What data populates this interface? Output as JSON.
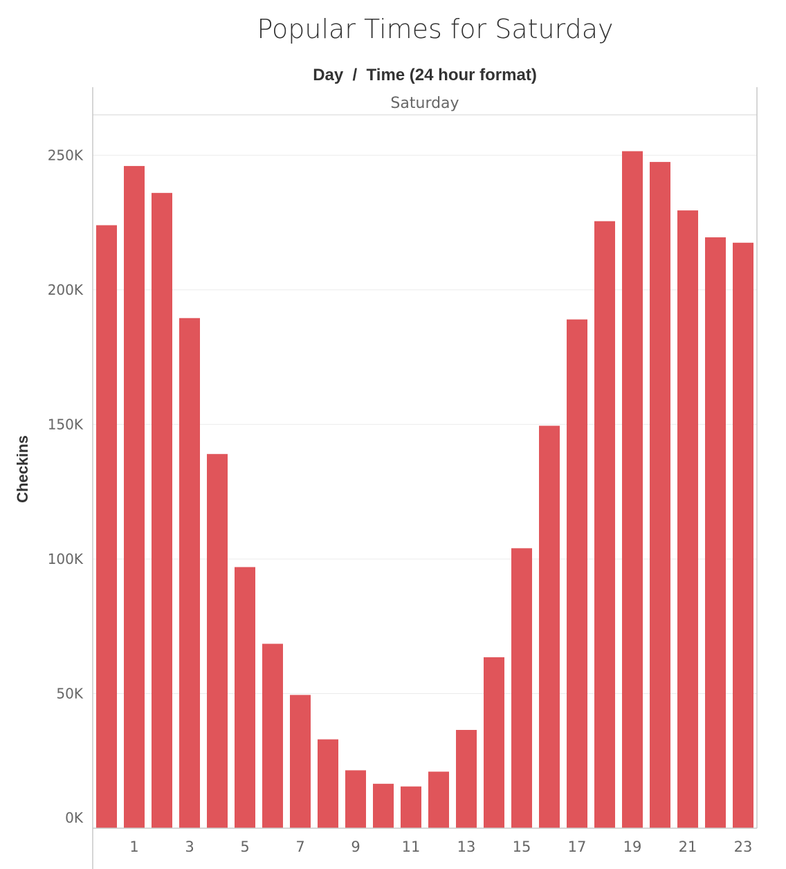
{
  "chart_data": {
    "type": "bar",
    "title": "Popular Times for Saturday",
    "column_header": "Day  /  Time (24 hour format)",
    "facet_label": "Saturday",
    "ylabel": "Checkins",
    "xlabel": "",
    "ylim": [
      0,
      265000
    ],
    "yticks": [
      0,
      50000,
      100000,
      150000,
      200000,
      250000
    ],
    "ytick_labels": [
      "0K",
      "50K",
      "100K",
      "150K",
      "200K",
      "250K"
    ],
    "x_tick_labels": [
      "1",
      "3",
      "5",
      "7",
      "9",
      "11",
      "13",
      "15",
      "17",
      "19",
      "21",
      "23"
    ],
    "categories": [
      0,
      1,
      2,
      3,
      4,
      5,
      6,
      7,
      8,
      9,
      10,
      11,
      12,
      13,
      14,
      15,
      16,
      17,
      18,
      19,
      20,
      21,
      22,
      23
    ],
    "values": [
      224000,
      246000,
      236000,
      189500,
      139000,
      97000,
      68500,
      49500,
      33000,
      21500,
      16500,
      15500,
      21000,
      36500,
      63500,
      104000,
      149500,
      189000,
      225500,
      251500,
      247500,
      229500,
      219500,
      217500
    ],
    "grid": true,
    "bar_color": "#e0555a",
    "gridline_color": "#ebebeb",
    "axis_color": "#c8c8c8",
    "text_color": "#333333",
    "tick_color": "#666666"
  }
}
